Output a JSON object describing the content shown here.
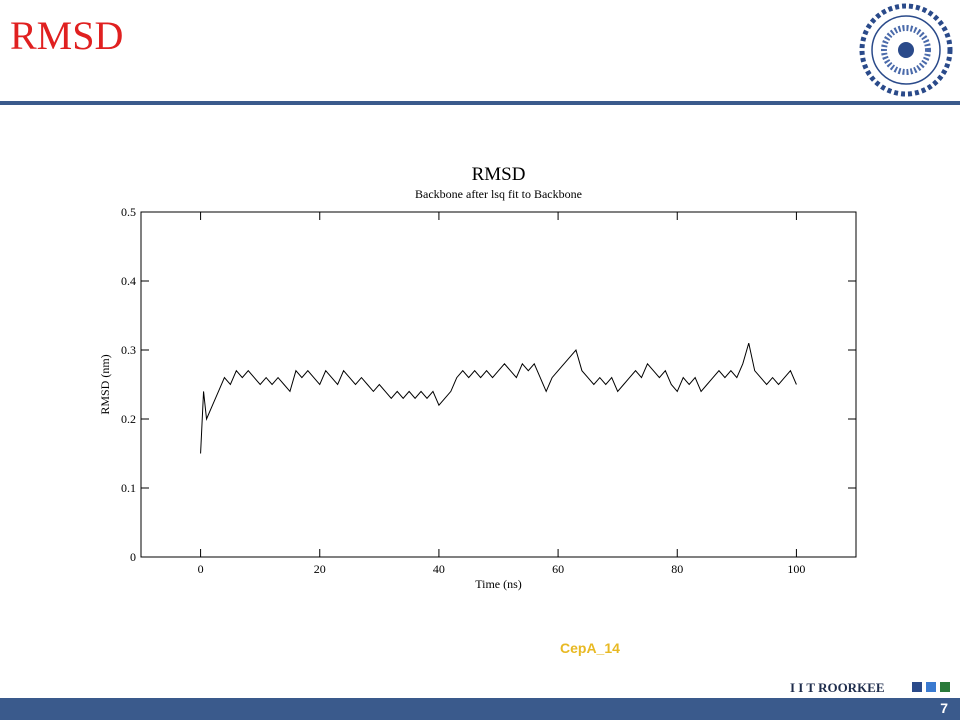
{
  "slide": {
    "title": "RMSD"
  },
  "caption": "CepA_14",
  "footer": {
    "brand": "I I T ROORKEE",
    "page": "7"
  },
  "chart_data": {
    "type": "line",
    "title": "RMSD",
    "subtitle": "Backbone after lsq fit to Backbone",
    "x_label": "Time (ns)",
    "y_label": "RMSD (nm)",
    "xlim": [
      -10,
      110
    ],
    "ylim": [
      0,
      0.5
    ],
    "xticks": [
      0,
      20,
      40,
      60,
      80,
      100
    ],
    "yticks": [
      0,
      0.1,
      0.2,
      0.3,
      0.4,
      0.5
    ],
    "x": [
      0,
      0.5,
      1,
      2,
      3,
      4,
      5,
      6,
      7,
      8,
      9,
      10,
      11,
      12,
      13,
      14,
      15,
      16,
      17,
      18,
      19,
      20,
      21,
      22,
      23,
      24,
      25,
      26,
      27,
      28,
      29,
      30,
      31,
      32,
      33,
      34,
      35,
      36,
      37,
      38,
      39,
      40,
      41,
      42,
      43,
      44,
      45,
      46,
      47,
      48,
      49,
      50,
      51,
      52,
      53,
      54,
      55,
      56,
      57,
      58,
      59,
      60,
      61,
      62,
      63,
      64,
      65,
      66,
      67,
      68,
      69,
      70,
      71,
      72,
      73,
      74,
      75,
      76,
      77,
      78,
      79,
      80,
      81,
      82,
      83,
      84,
      85,
      86,
      87,
      88,
      89,
      90,
      91,
      92,
      93,
      94,
      95,
      96,
      97,
      98,
      99,
      100
    ],
    "series": [
      {
        "name": "RMSD",
        "color": "#000000",
        "values": [
          0.15,
          0.24,
          0.2,
          0.22,
          0.24,
          0.26,
          0.25,
          0.27,
          0.26,
          0.27,
          0.26,
          0.25,
          0.26,
          0.25,
          0.26,
          0.25,
          0.24,
          0.27,
          0.26,
          0.27,
          0.26,
          0.25,
          0.27,
          0.26,
          0.25,
          0.27,
          0.26,
          0.25,
          0.26,
          0.25,
          0.24,
          0.25,
          0.24,
          0.23,
          0.24,
          0.23,
          0.24,
          0.23,
          0.24,
          0.23,
          0.24,
          0.22,
          0.23,
          0.24,
          0.26,
          0.27,
          0.26,
          0.27,
          0.26,
          0.27,
          0.26,
          0.27,
          0.28,
          0.27,
          0.26,
          0.28,
          0.27,
          0.28,
          0.26,
          0.24,
          0.26,
          0.27,
          0.28,
          0.29,
          0.3,
          0.27,
          0.26,
          0.25,
          0.26,
          0.25,
          0.26,
          0.24,
          0.25,
          0.26,
          0.27,
          0.26,
          0.28,
          0.27,
          0.26,
          0.27,
          0.25,
          0.24,
          0.26,
          0.25,
          0.26,
          0.24,
          0.25,
          0.26,
          0.27,
          0.26,
          0.27,
          0.26,
          0.28,
          0.31,
          0.27,
          0.26,
          0.25,
          0.26,
          0.25,
          0.26,
          0.27,
          0.25
        ]
      }
    ]
  }
}
